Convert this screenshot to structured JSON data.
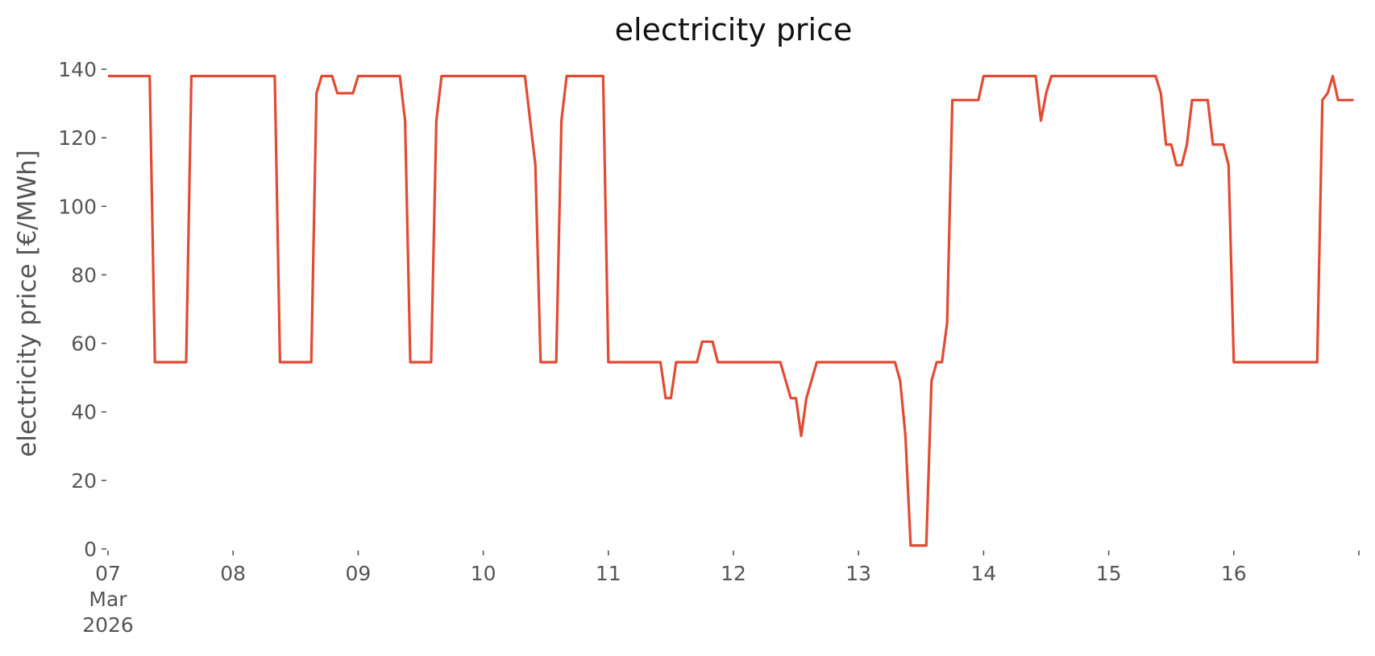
{
  "chart_data": {
    "type": "line",
    "title": "electricity price",
    "xlabel": "",
    "ylabel": "electricity price [€/MWh]",
    "grid": false,
    "legend": "none",
    "ylim": [
      0,
      140
    ],
    "xlim": [
      "2026-03-07T00:00",
      "2026-03-17T00:00"
    ],
    "y_ticks": [
      0,
      20,
      40,
      60,
      80,
      100,
      120,
      140
    ],
    "x_ticks": [
      {
        "date": "2026-03-07",
        "label": "07",
        "sub": [
          "Mar",
          "2026"
        ]
      },
      {
        "date": "2026-03-08",
        "label": "08"
      },
      {
        "date": "2026-03-09",
        "label": "09"
      },
      {
        "date": "2026-03-10",
        "label": "10"
      },
      {
        "date": "2026-03-11",
        "label": "11"
      },
      {
        "date": "2026-03-12",
        "label": "12"
      },
      {
        "date": "2026-03-13",
        "label": "13"
      },
      {
        "date": "2026-03-14",
        "label": "14"
      },
      {
        "date": "2026-03-15",
        "label": "15"
      },
      {
        "date": "2026-03-16",
        "label": "16"
      },
      {
        "date": "2026-03-17",
        "label": ""
      }
    ],
    "colors": {
      "line": "#E24A33"
    },
    "series": [
      {
        "x": [
          "2026-03-07T00:00",
          "2026-03-07T08:00",
          "2026-03-07T09:00",
          "2026-03-07T15:00",
          "2026-03-07T16:00",
          "2026-03-08T08:00",
          "2026-03-08T09:00",
          "2026-03-08T15:00",
          "2026-03-08T16:00",
          "2026-03-08T17:00",
          "2026-03-08T19:00",
          "2026-03-08T20:00",
          "2026-03-08T23:00",
          "2026-03-09T00:00",
          "2026-03-09T08:00",
          "2026-03-09T09:00",
          "2026-03-09T10:00",
          "2026-03-09T14:00",
          "2026-03-09T15:00",
          "2026-03-09T16:00",
          "2026-03-10T08:00",
          "2026-03-10T10:00",
          "2026-03-10T11:00",
          "2026-03-10T14:00",
          "2026-03-10T15:00",
          "2026-03-10T16:00",
          "2026-03-10T23:00",
          "2026-03-11T00:00",
          "2026-03-11T10:00",
          "2026-03-11T11:00",
          "2026-03-11T12:00",
          "2026-03-11T13:00",
          "2026-03-11T17:00",
          "2026-03-11T18:00",
          "2026-03-11T20:00",
          "2026-03-11T21:00",
          "2026-03-12T09:00",
          "2026-03-12T11:00",
          "2026-03-12T12:00",
          "2026-03-12T13:00",
          "2026-03-12T14:00",
          "2026-03-12T16:00",
          "2026-03-13T07:00",
          "2026-03-13T08:00",
          "2026-03-13T09:00",
          "2026-03-13T10:00",
          "2026-03-13T13:00",
          "2026-03-13T14:00",
          "2026-03-13T15:00",
          "2026-03-13T16:00",
          "2026-03-13T17:00",
          "2026-03-13T18:00",
          "2026-03-13T23:00",
          "2026-03-14T00:00",
          "2026-03-14T10:00",
          "2026-03-14T11:00",
          "2026-03-14T12:00",
          "2026-03-14T13:00",
          "2026-03-15T09:00",
          "2026-03-15T10:00",
          "2026-03-15T11:00",
          "2026-03-15T12:00",
          "2026-03-15T13:00",
          "2026-03-15T14:00",
          "2026-03-15T15:00",
          "2026-03-15T16:00",
          "2026-03-15T19:00",
          "2026-03-15T20:00",
          "2026-03-15T22:00",
          "2026-03-15T23:00",
          "2026-03-16T00:00",
          "2026-03-16T16:00",
          "2026-03-16T17:00",
          "2026-03-16T18:00",
          "2026-03-16T19:00",
          "2026-03-16T20:00",
          "2026-03-16T23:00"
        ],
        "y": [
          138,
          138,
          54.5,
          54.5,
          138,
          138,
          54.5,
          54.5,
          133,
          138,
          138,
          133,
          133,
          138,
          138,
          125,
          54.5,
          54.5,
          125,
          138,
          138,
          112,
          54.5,
          54.5,
          125,
          138,
          138,
          54.5,
          54.5,
          44,
          44,
          54.5,
          54.5,
          60.5,
          60.5,
          54.5,
          54.5,
          44,
          44,
          33,
          44,
          54.5,
          54.5,
          49,
          33,
          1,
          1,
          49,
          54.5,
          54.5,
          66,
          131,
          131,
          138,
          138,
          125,
          133,
          138,
          138,
          133,
          118,
          118,
          112,
          112,
          118,
          131,
          131,
          118,
          118,
          112,
          54.5,
          54.5,
          131,
          133,
          138,
          131,
          131
        ]
      }
    ]
  }
}
